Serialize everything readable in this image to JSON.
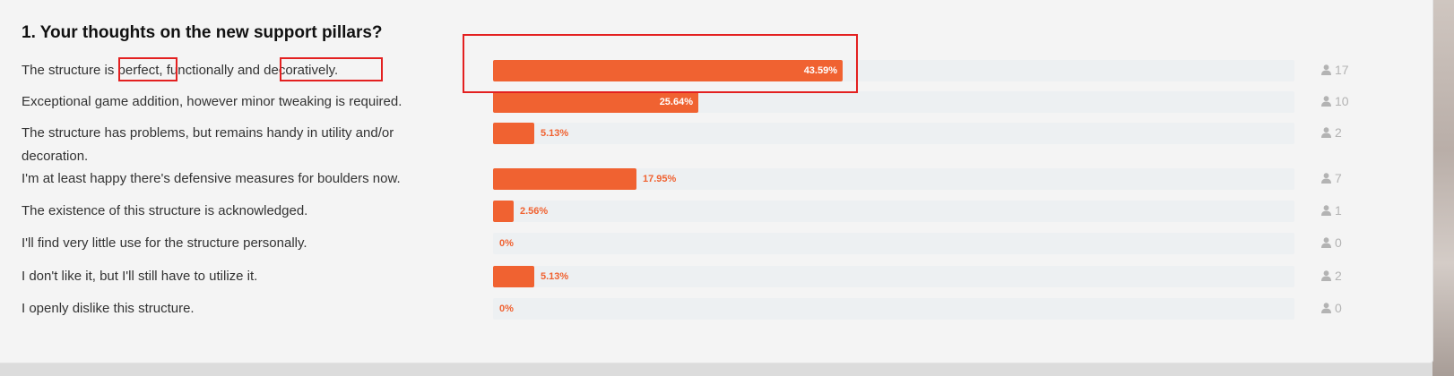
{
  "poll": {
    "question": "1. Your thoughts on the new support pillars?",
    "options": [
      {
        "label": "The structure is perfect, functionally and decoratively.",
        "percent_text": "43.59%",
        "fraction": 0.4359,
        "votes": "17"
      },
      {
        "label": "Exceptional game addition, however minor tweaking is required.",
        "percent_text": "25.64%",
        "fraction": 0.2564,
        "votes": "10"
      },
      {
        "label": "The structure has problems, but remains handy in utility and/or decoration.",
        "percent_text": "5.13%",
        "fraction": 0.0513,
        "votes": "2"
      },
      {
        "label": "I'm at least happy there's defensive measures for boulders now.",
        "percent_text": "17.95%",
        "fraction": 0.1795,
        "votes": "7"
      },
      {
        "label": "The existence of this structure is acknowledged.",
        "percent_text": "2.56%",
        "fraction": 0.0256,
        "votes": "1"
      },
      {
        "label": "I'll find very little use for the structure personally.",
        "percent_text": "0%",
        "fraction": 0,
        "votes": "0"
      },
      {
        "label": "I don't like it, but I'll still have to utilize it.",
        "percent_text": "5.13%",
        "fraction": 0.0513,
        "votes": "2"
      },
      {
        "label": "I openly dislike this structure.",
        "percent_text": "0%",
        "fraction": 0,
        "votes": "0"
      }
    ]
  },
  "colors": {
    "bar": "#f06231",
    "track": "#edf0f2",
    "highlight": "#e32020"
  },
  "icons": {
    "vote_count": "user-icon"
  }
}
